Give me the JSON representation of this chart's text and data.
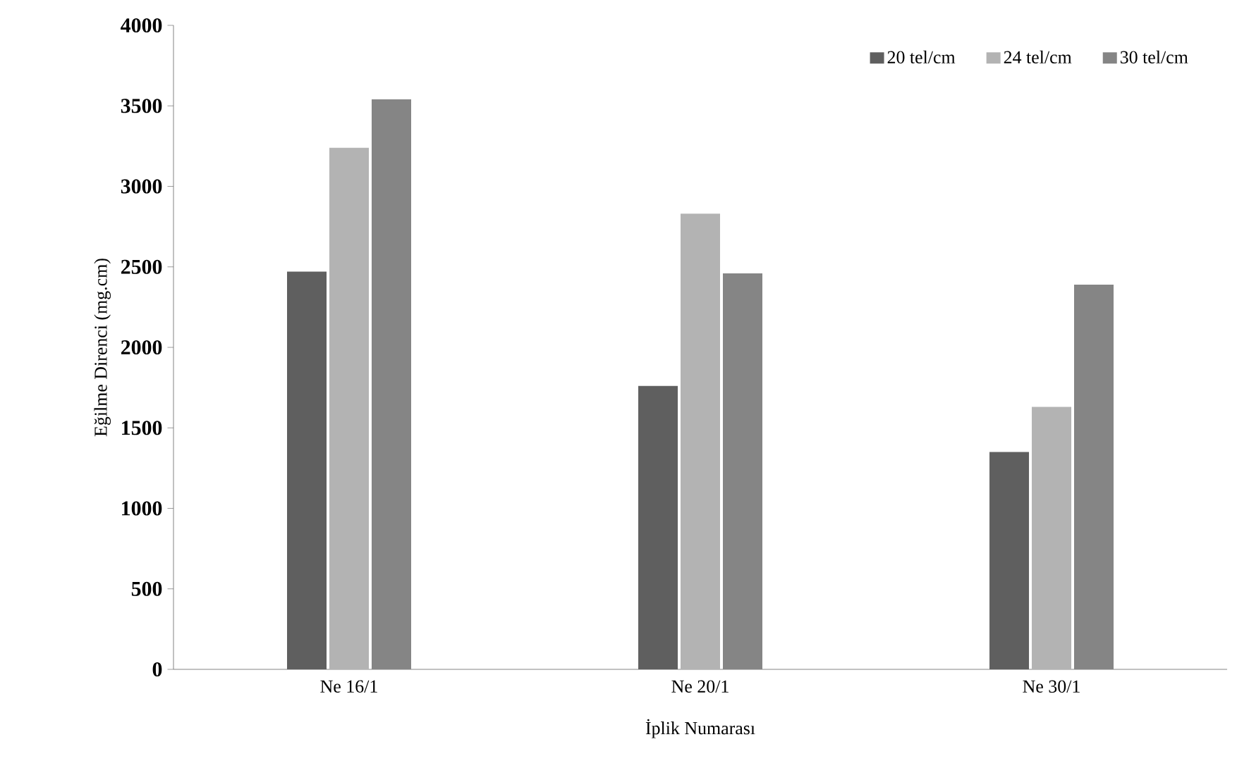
{
  "chart_data": {
    "type": "bar",
    "xlabel": "İplik Numarası",
    "ylabel": "Eğilme Direnci (mg.cm)",
    "categories": [
      "Ne 16/1",
      "Ne 20/1",
      "Ne 30/1"
    ],
    "series": [
      {
        "name": "20 tel/cm",
        "color": "#5f5f5f",
        "values": [
          2470,
          1760,
          1350
        ]
      },
      {
        "name": "24 tel/cm",
        "color": "#b3b3b3",
        "values": [
          3240,
          2830,
          1630
        ]
      },
      {
        "name": "30 tel/cm",
        "color": "#858585",
        "values": [
          3540,
          2460,
          2390
        ]
      }
    ],
    "ylim": [
      0,
      4000
    ],
    "yticks": [
      0,
      500,
      1000,
      1500,
      2000,
      2500,
      3000,
      3500,
      4000
    ],
    "legend": "top right",
    "grid": false
  }
}
